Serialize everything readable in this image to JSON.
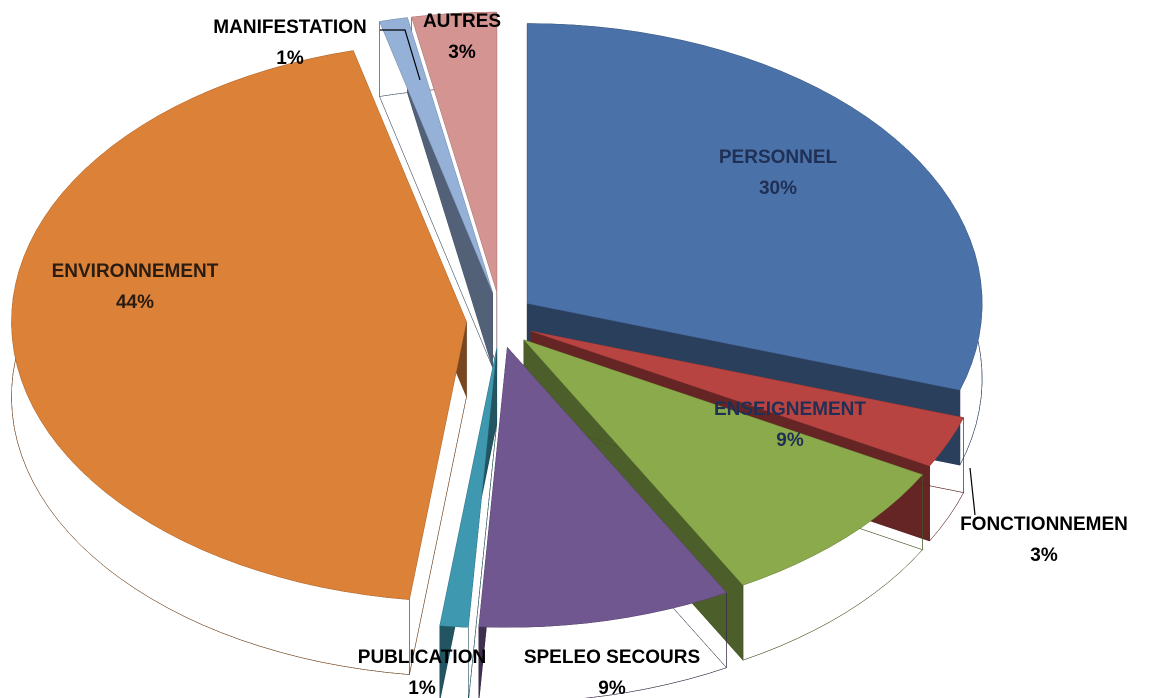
{
  "chart_data": {
    "type": "pie",
    "categories": [
      "PERSONNEL",
      "FONCTIONNEMEN",
      "ENSEIGNEMENT",
      "SPELEO SECOURS",
      "PUBLICATION",
      "ENVIRONNEMENT",
      "MANIFESTATION",
      "AUTRES"
    ],
    "values": [
      30,
      3,
      9,
      9,
      1,
      44,
      1,
      3
    ],
    "value_labels": [
      "30%",
      "3%",
      "9%",
      "9%",
      "1%",
      "44%",
      "1%",
      "3%"
    ],
    "colors": [
      "#4a72a8",
      "#b84442",
      "#8aaa4b",
      "#71578f",
      "#3e98b0",
      "#dc8138",
      "#95b1d8",
      "#d49492"
    ]
  }
}
